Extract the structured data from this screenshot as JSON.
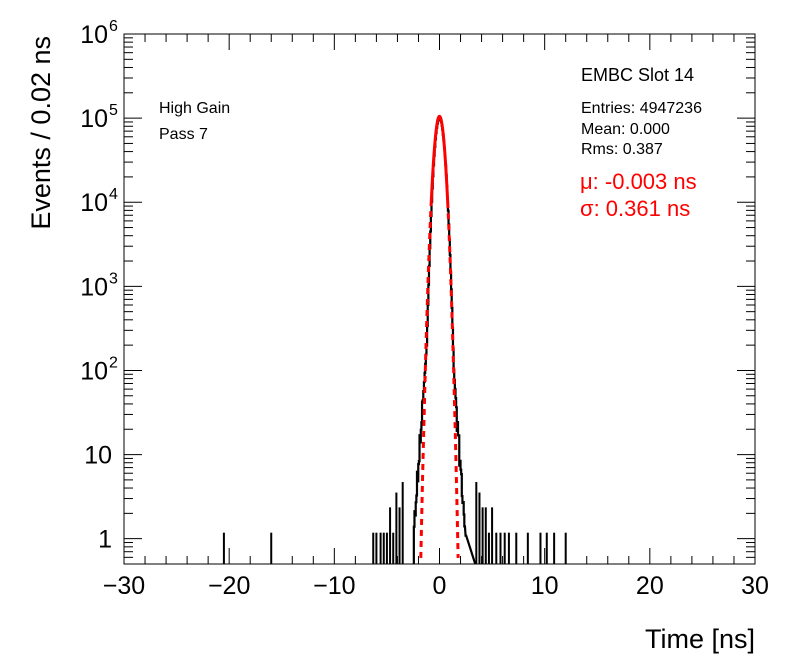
{
  "chart_data": {
    "type": "histogram",
    "title": "",
    "xlabel": "Time [ns]",
    "ylabel": "Events / 0.02 ns",
    "xlim": [
      -30,
      30
    ],
    "ylim": [
      0.5,
      1000000
    ],
    "yscale": "log",
    "grid": false,
    "x_ticks": [
      "−30",
      "−20",
      "−10",
      "0",
      "10",
      "20",
      "30"
    ],
    "y_ticks": [
      {
        "value": 1,
        "label": "1"
      },
      {
        "value": 10,
        "label": "10"
      },
      {
        "value": 100,
        "label": "10",
        "exp": "2"
      },
      {
        "value": 1000,
        "label": "10",
        "exp": "3"
      },
      {
        "value": 10000,
        "label": "10",
        "exp": "4"
      },
      {
        "value": 100000,
        "label": "10",
        "exp": "5"
      },
      {
        "value": 1000000,
        "label": "10",
        "exp": "6"
      }
    ],
    "annotations_left": [
      "High Gain",
      "Pass 7"
    ],
    "stats": {
      "name": "EMBC Slot 14",
      "entries": "Entries: 4947236",
      "mean": "Mean: 0.000",
      "rms": "Rms: 0.387"
    },
    "fit_text": {
      "mu": "μ: -0.003 ns",
      "sigma": "σ: 0.361 ns",
      "color": "#ff0000"
    },
    "series": [
      {
        "kind": "histogram",
        "color": "#000000",
        "core": {
          "mu": -0.003,
          "peak": 100000,
          "sigma_left": 0.34,
          "sigma_right": 0.37,
          "tail_slope_per_ns": 1.6,
          "tail_norm": 30000
        },
        "outliers": [
          {
            "x": -20.5,
            "y": 1
          },
          {
            "x": -16.0,
            "y": 1
          },
          {
            "x": -6.3,
            "y": 1
          },
          {
            "x": -6.0,
            "y": 1
          },
          {
            "x": -5.6,
            "y": 1
          },
          {
            "x": -5.3,
            "y": 1
          },
          {
            "x": -5.0,
            "y": 1
          },
          {
            "x": -4.7,
            "y": 2
          },
          {
            "x": -4.4,
            "y": 1
          },
          {
            "x": -4.1,
            "y": 3
          },
          {
            "x": -3.8,
            "y": 2
          },
          {
            "x": -3.5,
            "y": 4
          },
          {
            "x": 3.5,
            "y": 4
          },
          {
            "x": 3.8,
            "y": 3
          },
          {
            "x": 4.1,
            "y": 2
          },
          {
            "x": 4.4,
            "y": 2
          },
          {
            "x": 4.7,
            "y": 1
          },
          {
            "x": 5.0,
            "y": 2
          },
          {
            "x": 5.4,
            "y": 1
          },
          {
            "x": 5.8,
            "y": 1
          },
          {
            "x": 6.2,
            "y": 1
          },
          {
            "x": 6.6,
            "y": 1
          },
          {
            "x": 7.3,
            "y": 1
          },
          {
            "x": 8.4,
            "y": 1
          },
          {
            "x": 9.6,
            "y": 1
          },
          {
            "x": 10.2,
            "y": 1
          },
          {
            "x": 10.9,
            "y": 1
          },
          {
            "x": 12.0,
            "y": 1
          }
        ]
      },
      {
        "kind": "gaussian_fit",
        "color": "#ff0000",
        "mu": -0.003,
        "sigma": 0.361,
        "peak": 105000,
        "dashed_below": 10000
      }
    ]
  }
}
